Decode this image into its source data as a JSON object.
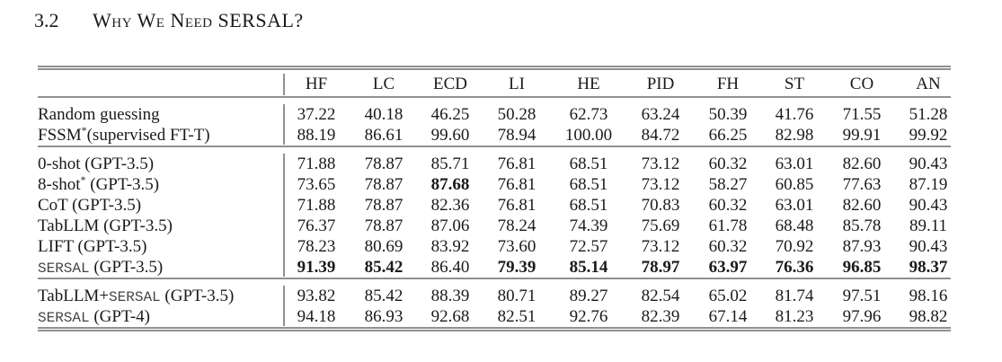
{
  "heading": {
    "number": "3.2",
    "title": "Why We Need SERSAL?"
  },
  "table": {
    "columns": [
      "HF",
      "LC",
      "ECD",
      "LI",
      "HE",
      "PID",
      "FH",
      "ST",
      "CO",
      "AN"
    ],
    "groups": [
      {
        "rows": [
          {
            "label": [
              {
                "text": "Random guessing"
              }
            ],
            "cells": [
              "37.22",
              "40.18",
              "46.25",
              "50.28",
              "62.73",
              "63.24",
              "50.39",
              "41.76",
              "71.55",
              "51.28"
            ],
            "bold": []
          },
          {
            "label": [
              {
                "text": "FSSM"
              },
              {
                "text": "*",
                "style": "sup"
              },
              {
                "text": "(supervised FT-T)"
              }
            ],
            "cells": [
              "88.19",
              "86.61",
              "99.60",
              "78.94",
              "100.00",
              "84.72",
              "66.25",
              "82.98",
              "99.91",
              "99.92"
            ],
            "bold": []
          }
        ]
      },
      {
        "rows": [
          {
            "label": [
              {
                "text": "0-shot (GPT-3.5)"
              }
            ],
            "cells": [
              "71.88",
              "78.87",
              "85.71",
              "76.81",
              "68.51",
              "73.12",
              "60.32",
              "63.01",
              "82.60",
              "90.43"
            ],
            "bold": []
          },
          {
            "label": [
              {
                "text": "8-shot"
              },
              {
                "text": "*",
                "style": "sup"
              },
              {
                "text": " (GPT-3.5)"
              }
            ],
            "cells": [
              "73.65",
              "78.87",
              "87.68",
              "76.81",
              "68.51",
              "73.12",
              "58.27",
              "60.85",
              "77.63",
              "87.19"
            ],
            "bold": [
              2
            ]
          },
          {
            "label": [
              {
                "text": "CoT (GPT-3.5)"
              }
            ],
            "cells": [
              "71.88",
              "78.87",
              "82.36",
              "76.81",
              "68.51",
              "70.83",
              "60.32",
              "63.01",
              "82.60",
              "90.43"
            ],
            "bold": []
          },
          {
            "label": [
              {
                "text": "TabLLM (GPT-3.5)"
              }
            ],
            "cells": [
              "76.37",
              "78.87",
              "87.06",
              "78.24",
              "74.39",
              "75.69",
              "61.78",
              "68.48",
              "85.78",
              "89.11"
            ],
            "bold": []
          },
          {
            "label": [
              {
                "text": "LIFT (GPT-3.5)"
              }
            ],
            "cells": [
              "78.23",
              "80.69",
              "83.92",
              "73.60",
              "72.57",
              "73.12",
              "60.32",
              "70.92",
              "87.93",
              "90.43"
            ],
            "bold": []
          },
          {
            "label": [
              {
                "text": "SERSAL",
                "style": "mono"
              },
              {
                "text": " (GPT-3.5)"
              }
            ],
            "cells": [
              "91.39",
              "85.42",
              "86.40",
              "79.39",
              "85.14",
              "78.97",
              "63.97",
              "76.36",
              "96.85",
              "98.37"
            ],
            "bold": [
              0,
              1,
              3,
              4,
              5,
              6,
              7,
              8,
              9
            ]
          }
        ]
      },
      {
        "rows": [
          {
            "label": [
              {
                "text": "TabLLM+"
              },
              {
                "text": "SERSAL",
                "style": "mono"
              },
              {
                "text": " (GPT-3.5)"
              }
            ],
            "cells": [
              "93.82",
              "85.42",
              "88.39",
              "80.71",
              "89.27",
              "82.54",
              "65.02",
              "81.74",
              "97.51",
              "98.16"
            ],
            "bold": []
          },
          {
            "label": [
              {
                "text": "SERSAL",
                "style": "mono"
              },
              {
                "text": " (GPT-4)"
              }
            ],
            "cells": [
              "94.18",
              "86.93",
              "92.68",
              "82.51",
              "92.76",
              "82.39",
              "67.14",
              "81.23",
              "97.96",
              "98.82"
            ],
            "bold": []
          }
        ]
      }
    ]
  }
}
